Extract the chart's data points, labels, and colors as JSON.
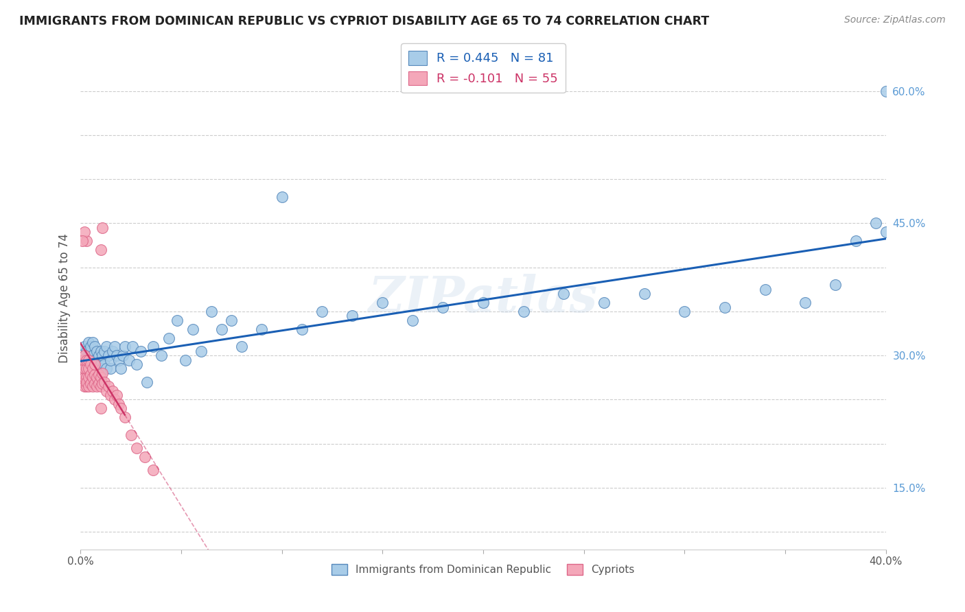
{
  "title": "IMMIGRANTS FROM DOMINICAN REPUBLIC VS CYPRIOT DISABILITY AGE 65 TO 74 CORRELATION CHART",
  "source": "Source: ZipAtlas.com",
  "ylabel": "Disability Age 65 to 74",
  "xlim": [
    0.0,
    0.4
  ],
  "ylim": [
    0.08,
    0.65
  ],
  "blue_R": 0.445,
  "blue_N": 81,
  "pink_R": -0.101,
  "pink_N": 55,
  "blue_color": "#a8cce8",
  "pink_color": "#f4a7b9",
  "blue_edge_color": "#5588bb",
  "pink_edge_color": "#dd6688",
  "blue_line_color": "#1a5fb4",
  "pink_line_color": "#cc3366",
  "watermark": "ZIPatlas",
  "blue_scatter_x": [
    0.001,
    0.002,
    0.002,
    0.003,
    0.003,
    0.003,
    0.004,
    0.004,
    0.004,
    0.005,
    0.005,
    0.005,
    0.006,
    0.006,
    0.006,
    0.006,
    0.007,
    0.007,
    0.007,
    0.008,
    0.008,
    0.008,
    0.009,
    0.009,
    0.01,
    0.01,
    0.01,
    0.011,
    0.011,
    0.012,
    0.012,
    0.013,
    0.013,
    0.014,
    0.015,
    0.015,
    0.016,
    0.017,
    0.018,
    0.019,
    0.02,
    0.021,
    0.022,
    0.024,
    0.026,
    0.028,
    0.03,
    0.033,
    0.036,
    0.04,
    0.044,
    0.048,
    0.052,
    0.056,
    0.06,
    0.065,
    0.07,
    0.075,
    0.08,
    0.09,
    0.1,
    0.11,
    0.12,
    0.135,
    0.15,
    0.165,
    0.18,
    0.2,
    0.22,
    0.24,
    0.26,
    0.28,
    0.3,
    0.32,
    0.34,
    0.36,
    0.375,
    0.385,
    0.395,
    0.4,
    0.4
  ],
  "blue_scatter_y": [
    0.295,
    0.28,
    0.31,
    0.27,
    0.29,
    0.305,
    0.285,
    0.3,
    0.315,
    0.275,
    0.295,
    0.31,
    0.27,
    0.285,
    0.3,
    0.315,
    0.28,
    0.295,
    0.31,
    0.275,
    0.29,
    0.305,
    0.285,
    0.3,
    0.275,
    0.29,
    0.305,
    0.285,
    0.3,
    0.29,
    0.305,
    0.285,
    0.31,
    0.3,
    0.285,
    0.295,
    0.305,
    0.31,
    0.3,
    0.295,
    0.285,
    0.3,
    0.31,
    0.295,
    0.31,
    0.29,
    0.305,
    0.27,
    0.31,
    0.3,
    0.32,
    0.34,
    0.295,
    0.33,
    0.305,
    0.35,
    0.33,
    0.34,
    0.31,
    0.33,
    0.48,
    0.33,
    0.35,
    0.345,
    0.36,
    0.34,
    0.355,
    0.36,
    0.35,
    0.37,
    0.36,
    0.37,
    0.35,
    0.355,
    0.375,
    0.36,
    0.38,
    0.43,
    0.45,
    0.44,
    0.6
  ],
  "pink_scatter_x": [
    0.001,
    0.001,
    0.001,
    0.001,
    0.002,
    0.002,
    0.002,
    0.002,
    0.002,
    0.003,
    0.003,
    0.003,
    0.003,
    0.003,
    0.004,
    0.004,
    0.004,
    0.004,
    0.005,
    0.005,
    0.005,
    0.006,
    0.006,
    0.006,
    0.007,
    0.007,
    0.007,
    0.008,
    0.008,
    0.009,
    0.009,
    0.01,
    0.01,
    0.011,
    0.011,
    0.012,
    0.013,
    0.014,
    0.015,
    0.016,
    0.017,
    0.018,
    0.019,
    0.02,
    0.022,
    0.025,
    0.028,
    0.032,
    0.036,
    0.01,
    0.01,
    0.011,
    0.003,
    0.002,
    0.001
  ],
  "pink_scatter_y": [
    0.27,
    0.28,
    0.29,
    0.295,
    0.265,
    0.275,
    0.285,
    0.295,
    0.3,
    0.265,
    0.275,
    0.285,
    0.295,
    0.27,
    0.265,
    0.275,
    0.285,
    0.295,
    0.268,
    0.278,
    0.29,
    0.265,
    0.275,
    0.285,
    0.268,
    0.278,
    0.29,
    0.265,
    0.275,
    0.268,
    0.278,
    0.265,
    0.275,
    0.268,
    0.28,
    0.27,
    0.26,
    0.265,
    0.255,
    0.26,
    0.25,
    0.255,
    0.245,
    0.24,
    0.23,
    0.21,
    0.195,
    0.185,
    0.17,
    0.24,
    0.42,
    0.445,
    0.43,
    0.44,
    0.43
  ],
  "background_color": "#ffffff",
  "grid_color": "#cccccc"
}
